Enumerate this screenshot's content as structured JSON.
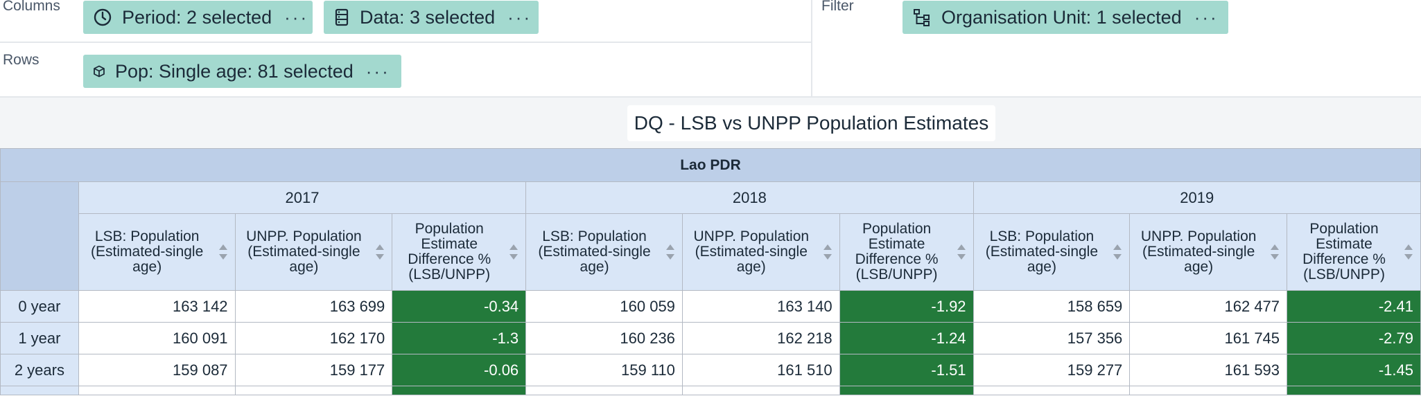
{
  "layout": {
    "columns_label": "Columns",
    "rows_label": "Rows",
    "filter_label": "Filter",
    "chips": {
      "period": "Period: 2 selected",
      "data": "Data: 3 selected",
      "org_unit": "Organisation Unit: 1 selected",
      "pop": "Pop: Single age: 81 selected"
    },
    "more_glyph": "···"
  },
  "visualization": {
    "title": "DQ - LSB vs UNPP Population Estimates",
    "org_unit_header": "Lao PDR",
    "years": [
      "2017",
      "2018",
      "2019"
    ],
    "column_headers": [
      "LSB: Population (Estimated-single age)",
      "UNPP. Population (Estimated-single age)",
      "Population Estimate Difference % (LSB/UNPP)"
    ],
    "rows": [
      {
        "label": "0 year",
        "values": [
          "163 142",
          "163 699",
          "-0.34",
          "160 059",
          "163 140",
          "-1.92",
          "158 659",
          "162 477",
          "-2.41"
        ]
      },
      {
        "label": "1 year",
        "values": [
          "160 091",
          "162 170",
          "-1.3",
          "160 236",
          "162 218",
          "-1.24",
          "157 356",
          "161 745",
          "-2.79"
        ]
      },
      {
        "label": "2 years",
        "values": [
          "159 087",
          "159 177",
          "-0.06",
          "159 110",
          "161 510",
          "-1.51",
          "159 277",
          "161 593",
          "-1.45"
        ]
      }
    ]
  },
  "colors": {
    "chip_bg": "#a3d9cf",
    "header_dark": "#bdcfe8",
    "header_light": "#d9e6f7",
    "difference_cell": "#237a3b"
  }
}
